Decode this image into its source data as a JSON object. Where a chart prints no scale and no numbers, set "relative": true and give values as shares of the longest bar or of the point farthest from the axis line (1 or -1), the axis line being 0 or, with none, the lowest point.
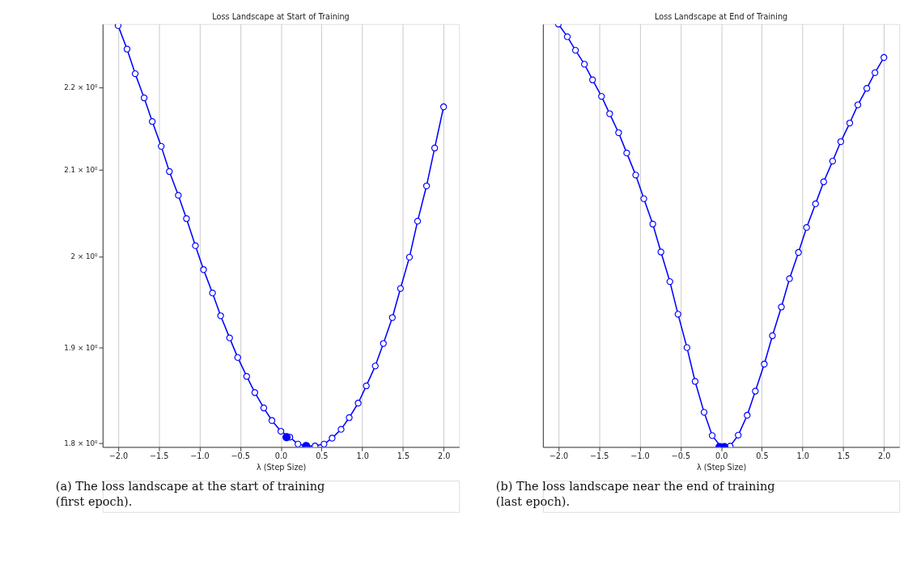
{
  "chart_data": [
    {
      "type": "line",
      "title": "Loss Landscape at Start of Training",
      "xlabel": "λ (Step Size)",
      "log": "y",
      "grid": "x",
      "marker": "circle",
      "line_style": "solid",
      "x": [
        -2.0,
        -1.89,
        -1.79,
        -1.68,
        -1.58,
        -1.47,
        -1.37,
        -1.26,
        -1.16,
        -1.05,
        -0.95,
        -0.84,
        -0.74,
        -0.63,
        -0.53,
        -0.42,
        -0.32,
        -0.21,
        -0.11,
        0.0,
        0.11,
        0.21,
        0.32,
        0.42,
        0.53,
        0.63,
        0.74,
        0.84,
        0.95,
        1.05,
        1.16,
        1.26,
        1.37,
        1.47,
        1.58,
        1.68,
        1.79,
        1.89,
        2.0
      ],
      "series": [
        {
          "color": "#0000ff",
          "values": [
            2.278,
            2.248,
            2.217,
            2.187,
            2.158,
            2.128,
            2.098,
            2.07,
            2.043,
            2.012,
            1.985,
            1.959,
            1.934,
            1.91,
            1.889,
            1.869,
            1.852,
            1.836,
            1.823,
            1.812,
            1.806,
            1.799,
            1.797,
            1.797,
            1.799,
            1.805,
            1.814,
            1.826,
            1.841,
            1.859,
            1.88,
            1.904,
            1.932,
            1.964,
            1.999,
            2.04,
            2.081,
            2.126,
            2.176
          ]
        },
        {
          "type": "scatter",
          "color": "#0000ff",
          "x": [
            0.07,
            0.31
          ],
          "values": [
            1.806,
            1.797
          ]
        }
      ],
      "xlim": [
        -2.19,
        2.19
      ],
      "ylim": [
        1.796,
        2.28
      ],
      "xticks": [
        {
          "value": -2.0,
          "label": "−2.0"
        },
        {
          "value": -1.5,
          "label": "−1.5"
        },
        {
          "value": -1.0,
          "label": "−1.0"
        },
        {
          "value": -0.5,
          "label": "−0.5"
        },
        {
          "value": 0.0,
          "label": "0.0"
        },
        {
          "value": 0.5,
          "label": "0.5"
        },
        {
          "value": 1.0,
          "label": "1.0"
        },
        {
          "value": 1.5,
          "label": "1.5"
        },
        {
          "value": 2.0,
          "label": "2.0"
        }
      ],
      "yticks": [
        {
          "value": 1.8,
          "label": "1.8 × 10⁰"
        },
        {
          "value": 1.9,
          "label": "1.9 × 10⁰"
        },
        {
          "value": 2.0,
          "label": "2 × 10⁰"
        },
        {
          "value": 2.1,
          "label": "2.1 × 10⁰"
        },
        {
          "value": 2.2,
          "label": "2.2 × 10⁰"
        }
      ],
      "annotations": [
        "(a) The loss landscape at the start of training (first epoch)."
      ]
    },
    {
      "type": "line",
      "title": "Loss Landscape at End of Training",
      "xlabel": "λ (Step Size)",
      "relative": true,
      "grid": "x",
      "marker": "circle",
      "line_style": "solid",
      "tick_labels": "x",
      "x": [
        -2.0,
        -1.89,
        -1.79,
        -1.68,
        -1.58,
        -1.47,
        -1.37,
        -1.26,
        -1.16,
        -1.05,
        -0.95,
        -0.84,
        -0.74,
        -0.63,
        -0.53,
        -0.42,
        -0.32,
        -0.21,
        -0.11,
        0.0,
        0.11,
        0.21,
        0.32,
        0.42,
        0.53,
        0.63,
        0.74,
        0.84,
        0.95,
        1.05,
        1.16,
        1.26,
        1.37,
        1.47,
        1.58,
        1.68,
        1.79,
        1.89,
        2.0
      ],
      "series": [
        {
          "color": "#0000ff",
          "values": [
            1.0,
            0.97,
            0.938,
            0.905,
            0.868,
            0.829,
            0.788,
            0.743,
            0.695,
            0.643,
            0.587,
            0.527,
            0.461,
            0.391,
            0.314,
            0.235,
            0.155,
            0.082,
            0.027,
            0.0,
            0.002,
            0.028,
            0.075,
            0.132,
            0.196,
            0.263,
            0.331,
            0.398,
            0.46,
            0.519,
            0.575,
            0.627,
            0.676,
            0.722,
            0.766,
            0.809,
            0.848,
            0.885,
            0.921
          ]
        },
        {
          "type": "scatter",
          "color": "#0000ff",
          "x": [
            -0.02,
            0.04
          ],
          "values": [
            0.0,
            0.0
          ]
        }
      ],
      "xlim": [
        -2.19,
        2.19
      ],
      "xticks": [
        {
          "value": -2.0,
          "label": "−2.0"
        },
        {
          "value": -1.5,
          "label": "−1.5"
        },
        {
          "value": -1.0,
          "label": "−1.0"
        },
        {
          "value": -0.5,
          "label": "−0.5"
        },
        {
          "value": 0.0,
          "label": "0.0"
        },
        {
          "value": 0.5,
          "label": "0.5"
        },
        {
          "value": 1.0,
          "label": "1.0"
        },
        {
          "value": 1.5,
          "label": "1.5"
        },
        {
          "value": 2.0,
          "label": "2.0"
        }
      ],
      "annotations": [
        "(b) The loss landscape near the end of training (last epoch)."
      ]
    }
  ]
}
